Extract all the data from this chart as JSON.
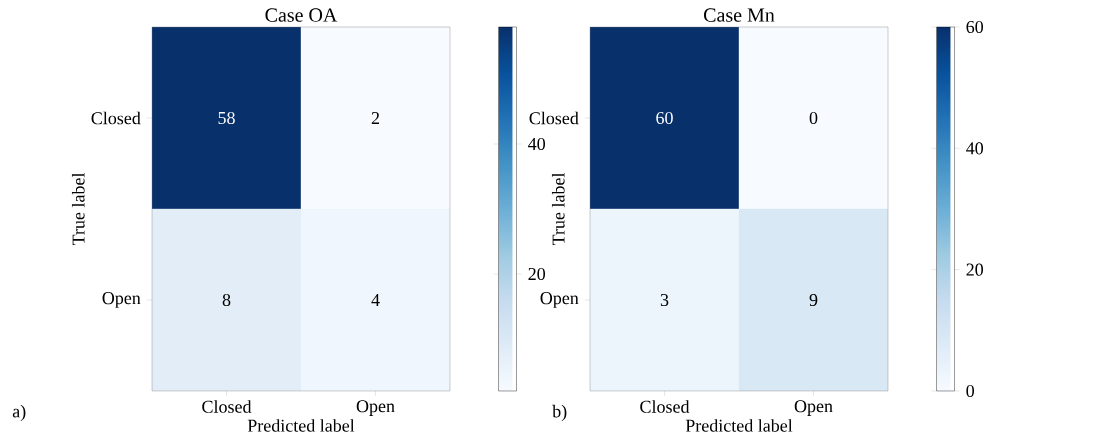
{
  "chart_data": [
    {
      "type": "heatmap",
      "title": "Case OA",
      "xlabel": "Predicted label",
      "ylabel": "True label",
      "categories": [
        "Closed",
        "Open"
      ],
      "y_categories": [
        "Closed",
        "Open"
      ],
      "cells": [
        [
          58,
          2
        ],
        [
          8,
          4
        ]
      ],
      "clim": [
        2,
        58
      ],
      "cticks": [
        20,
        40
      ],
      "data_labels": true,
      "annotations": [
        "a)"
      ]
    },
    {
      "type": "heatmap",
      "title": "Case Mn",
      "xlabel": "Predicted label",
      "ylabel": "True label",
      "categories": [
        "Closed",
        "Open"
      ],
      "y_categories": [
        "Closed",
        "Open"
      ],
      "cells": [
        [
          60,
          0
        ],
        [
          3,
          9
        ]
      ],
      "clim": [
        0,
        60
      ],
      "cticks": [
        0,
        20,
        40,
        60
      ],
      "data_labels": true,
      "annotations": [
        "b)"
      ]
    }
  ]
}
